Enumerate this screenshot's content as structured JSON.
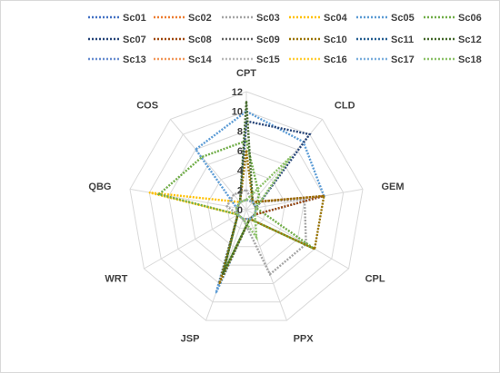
{
  "chart_data": {
    "type": "radar",
    "title": "",
    "axes": [
      "CPT",
      "CLD",
      "GEM",
      "CPL",
      "PPX",
      "JSP",
      "WRT",
      "QBG",
      "COS"
    ],
    "ticks": [
      0,
      2,
      4,
      6,
      8,
      10,
      12
    ],
    "rlim": [
      0,
      12
    ],
    "grid": true,
    "legend_position": "top",
    "series": [
      {
        "name": "Sc01",
        "color": "#4472C4",
        "values": [
          1,
          1,
          1,
          1,
          1,
          1,
          1,
          1,
          1
        ]
      },
      {
        "name": "Sc02",
        "color": "#ED7D31",
        "values": [
          1,
          1,
          1,
          1,
          1,
          1,
          1,
          1,
          1
        ]
      },
      {
        "name": "Sc03",
        "color": "#A5A5A5",
        "values": [
          2,
          1,
          6,
          7,
          7,
          1,
          1,
          2,
          2
        ]
      },
      {
        "name": "Sc04",
        "color": "#FFC000",
        "values": [
          1,
          1,
          1,
          1,
          1,
          1,
          1,
          10,
          1
        ]
      },
      {
        "name": "Sc05",
        "color": "#5B9BD5",
        "values": [
          10,
          9,
          8,
          1,
          1,
          9,
          1,
          1,
          8
        ]
      },
      {
        "name": "Sc06",
        "color": "#70AD47",
        "values": [
          7,
          2,
          1,
          8,
          1,
          7,
          1,
          9,
          7
        ]
      },
      {
        "name": "Sc07",
        "color": "#264478",
        "values": [
          9,
          10,
          1,
          1,
          1,
          8,
          1,
          1,
          1
        ]
      },
      {
        "name": "Sc08",
        "color": "#9E480E",
        "values": [
          1,
          1,
          8,
          1,
          1,
          1,
          1,
          1,
          1
        ]
      },
      {
        "name": "Sc09",
        "color": "#636363",
        "values": [
          1,
          1,
          1,
          1,
          1,
          1,
          1,
          1,
          1
        ]
      },
      {
        "name": "Sc10",
        "color": "#997300",
        "values": [
          6,
          1,
          8,
          8,
          1,
          8,
          1,
          1,
          1
        ]
      },
      {
        "name": "Sc11",
        "color": "#255E91",
        "values": [
          1,
          1,
          1,
          1,
          1,
          1,
          1,
          1,
          1
        ]
      },
      {
        "name": "Sc12",
        "color": "#43682B",
        "values": [
          11,
          1,
          1,
          1,
          1,
          7,
          1,
          1,
          1
        ]
      },
      {
        "name": "Sc13",
        "color": "#698ED0",
        "values": [
          1,
          1,
          1,
          1,
          1,
          1,
          1,
          1,
          1
        ]
      },
      {
        "name": "Sc14",
        "color": "#F1975A",
        "values": [
          1,
          1,
          1,
          1,
          1,
          1,
          1,
          1,
          1
        ]
      },
      {
        "name": "Sc15",
        "color": "#B7B7B7",
        "values": [
          1,
          1,
          1,
          1,
          1,
          1,
          1,
          1,
          1
        ]
      },
      {
        "name": "Sc16",
        "color": "#FFCD33",
        "values": [
          1,
          1,
          1,
          1,
          1,
          1,
          1,
          1,
          1
        ]
      },
      {
        "name": "Sc17",
        "color": "#7CAFDD",
        "values": [
          1,
          1,
          1,
          1,
          1,
          1,
          1,
          1,
          1
        ]
      },
      {
        "name": "Sc18",
        "color": "#8CC168",
        "values": [
          1,
          7,
          1,
          1,
          3,
          1,
          1,
          1,
          1
        ]
      }
    ]
  }
}
